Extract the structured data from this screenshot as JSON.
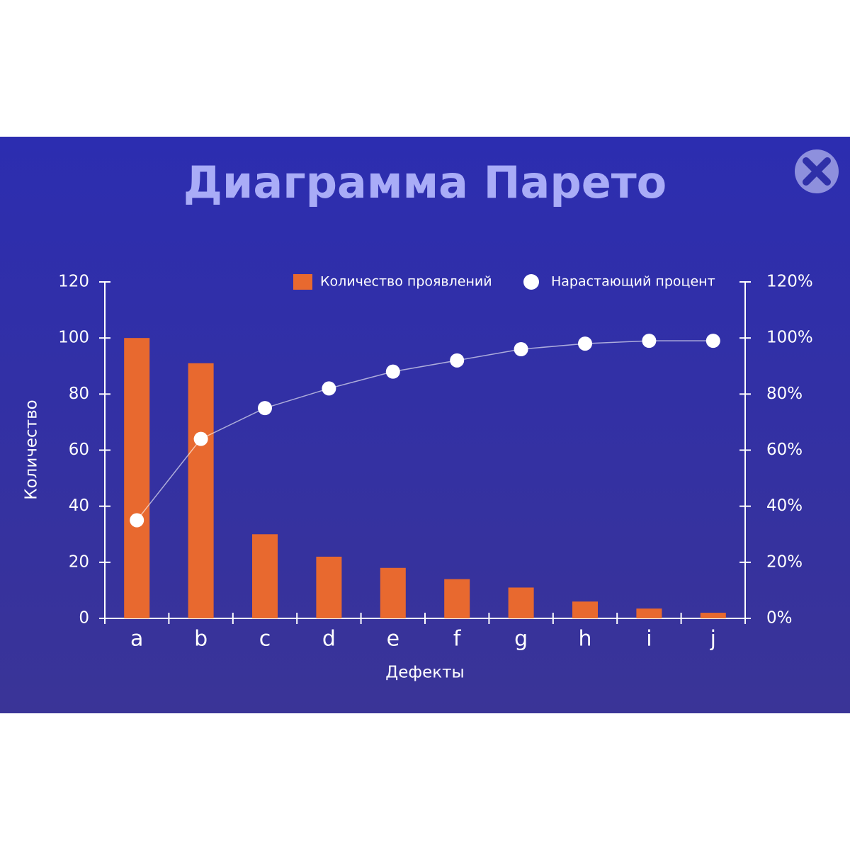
{
  "chart_data": {
    "type": "pareto",
    "title": "Диаграмма Парето",
    "categories": [
      "a",
      "b",
      "c",
      "d",
      "e",
      "f",
      "g",
      "h",
      "i",
      "j"
    ],
    "series": [
      {
        "name": "Количество проявлений",
        "type": "bar",
        "color": "#e8692f",
        "values": [
          100,
          91,
          30,
          22,
          18,
          14,
          11,
          6,
          3.5,
          2
        ]
      },
      {
        "name": "Нарастающий процент",
        "type": "line",
        "axis": "y2",
        "color": "#ffffff",
        "values": [
          35,
          64,
          75,
          82,
          88,
          92,
          96,
          98,
          99,
          99
        ]
      }
    ],
    "x_label": "Дефекты",
    "y_label": "Количество",
    "ylim": [
      0,
      120
    ],
    "yticks": [
      0,
      20,
      40,
      60,
      80,
      100,
      120
    ],
    "y2lim": [
      0,
      120
    ],
    "y2ticks": [
      {
        "value": 0,
        "label": "0%"
      },
      {
        "value": 20,
        "label": "20%"
      },
      {
        "value": 40,
        "label": "40%"
      },
      {
        "value": 60,
        "label": "60%"
      },
      {
        "value": 80,
        "label": "80%"
      },
      {
        "value": 100,
        "label": "100%"
      },
      {
        "value": 120,
        "label": "120%"
      }
    ],
    "legend": "top"
  }
}
